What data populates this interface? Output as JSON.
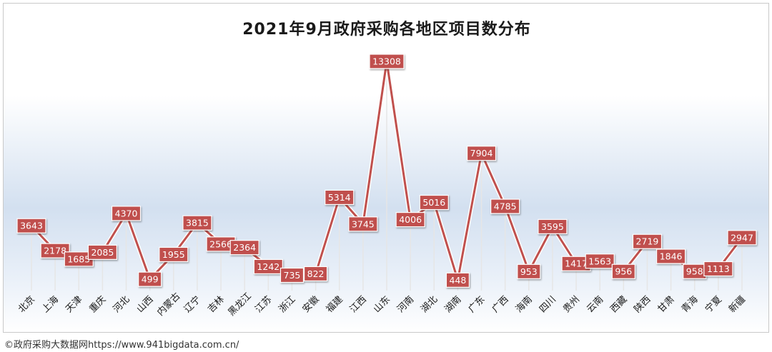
{
  "chart_data": {
    "type": "line",
    "title": "2021年9月政府采购各地区项目数分布",
    "categories": [
      "北京",
      "上海",
      "天津",
      "重庆",
      "河北",
      "山西",
      "内蒙古",
      "辽宁",
      "吉林",
      "黑龙江",
      "江苏",
      "浙江",
      "安徽",
      "福建",
      "江西",
      "山东",
      "河南",
      "湖北",
      "湖南",
      "广东",
      "广西",
      "海南",
      "四川",
      "贵州",
      "云南",
      "西藏",
      "陕西",
      "甘肃",
      "青海",
      "宁夏",
      "新疆"
    ],
    "values": [
      3643,
      2178,
      1685,
      2085,
      4370,
      499,
      1955,
      3815,
      2566,
      2364,
      1242,
      735,
      822,
      5314,
      3745,
      13308,
      4006,
      5016,
      448,
      7904,
      4785,
      953,
      3595,
      1417,
      1563,
      956,
      2719,
      1846,
      958,
      1113,
      2947
    ],
    "data_labels": [
      "3643",
      "2178",
      "1685",
      "2085",
      "4370",
      "499",
      "1955",
      "3815",
      "2566",
      "2364",
      "1242",
      "735",
      "822",
      "5314",
      "3745",
      "13308",
      "4006",
      "5016",
      "448",
      "7904",
      "4785",
      "953",
      "3595",
      "1417",
      "1563",
      "956",
      "2719",
      "1846",
      "958",
      "1113",
      "2947"
    ],
    "xlabel": "",
    "ylabel": "",
    "ylim": [
      0,
      14500
    ],
    "grid": false,
    "legend": "none",
    "colors": {
      "line": "#c0504d",
      "label_bg": "#c0504d",
      "label_text": "#ffffff",
      "label_border": "#ffffff",
      "drop_line": "#e6e6e6"
    }
  },
  "footer": {
    "text": "©政府采购大数据网https://www.941bigdata.com.cn/"
  }
}
